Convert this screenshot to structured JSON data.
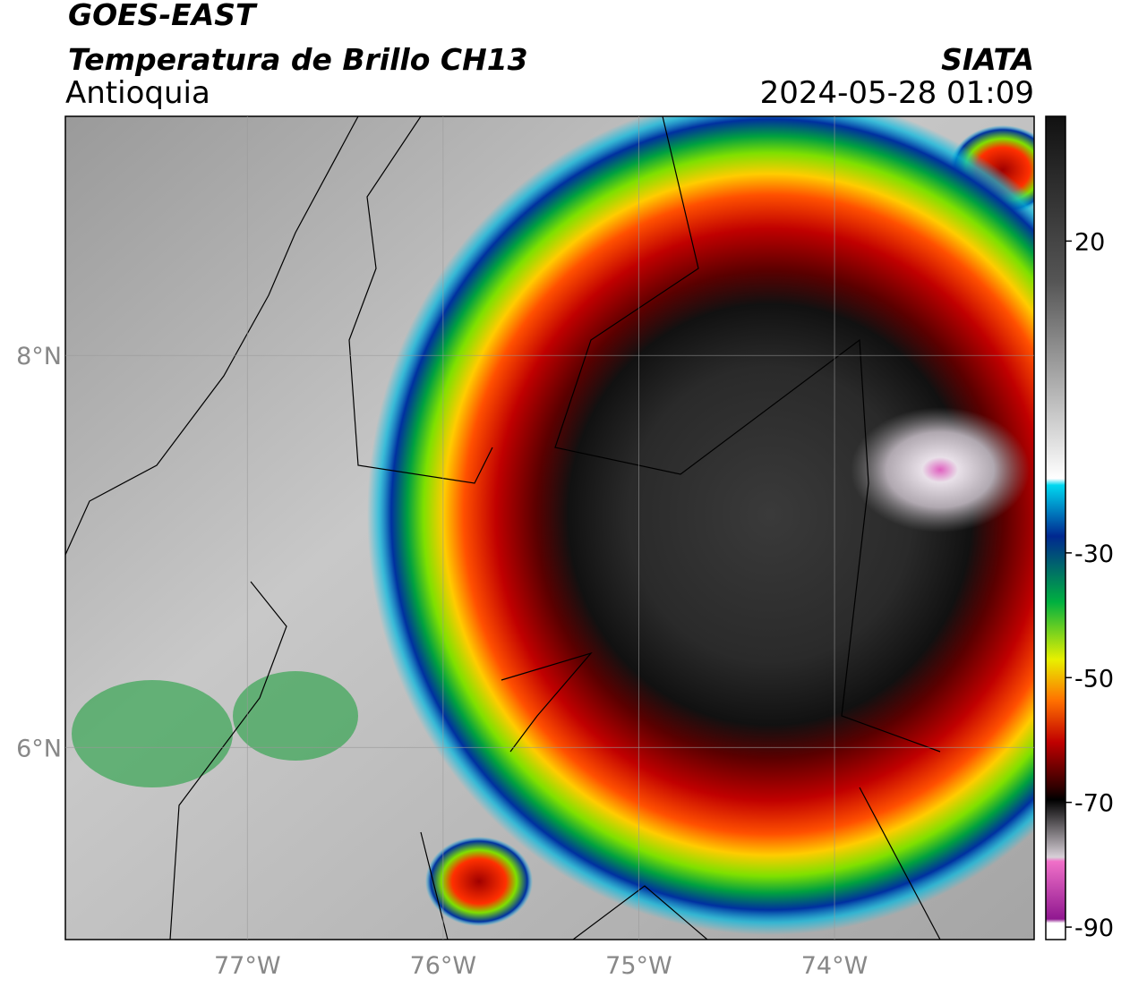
{
  "header": {
    "satellite": "GOES-EAST",
    "product": "Temperatura de Brillo CH13",
    "agency": "SIATA",
    "region": "Antioquia",
    "datetime": "2024-05-28 01:09"
  },
  "map": {
    "lonlim": [
      -77.93,
      -72.98
    ],
    "latlim": [
      5.02,
      9.22
    ],
    "lon_ticks": [
      {
        "value": -77,
        "label": "77°W"
      },
      {
        "value": -76,
        "label": "76°W"
      },
      {
        "value": -75,
        "label": "75°W"
      },
      {
        "value": -74,
        "label": "74°W"
      }
    ],
    "lat_ticks": [
      {
        "value": 8,
        "label": "8°N"
      },
      {
        "value": 6,
        "label": "6°N"
      }
    ]
  },
  "colorbar": {
    "range": [
      -92,
      40
    ],
    "ticks": [
      20,
      -30,
      -50,
      -70,
      -90
    ]
  }
}
